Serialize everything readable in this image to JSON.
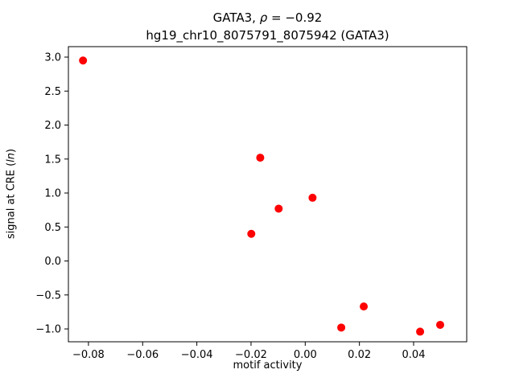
{
  "chart_data": {
    "type": "scatter",
    "title": {
      "line1_prefix": "GATA3, ",
      "line1_rho": "ρ",
      "line1_eq": " = −0.92",
      "line2": "hg19_chr10_8075791_8075942 (GATA3)"
    },
    "xlabel": "motif activity",
    "ylabel": {
      "prefix": "signal at CRE (",
      "italic": "ln",
      "suffix": ")"
    },
    "marker_color": "#ff0000",
    "xlim": [
      -0.0874,
      0.0596
    ],
    "ylim": [
      -1.189,
      3.154
    ],
    "xticks": [
      -0.08,
      -0.06,
      -0.04,
      -0.02,
      0.0,
      0.02,
      0.04
    ],
    "yticks": [
      -1.0,
      -0.5,
      0.0,
      0.5,
      1.0,
      1.5,
      2.0,
      2.5,
      3.0
    ],
    "points": [
      [
        -0.082,
        2.95
      ],
      [
        -0.0166,
        1.52
      ],
      [
        -0.0199,
        0.4
      ],
      [
        -0.0098,
        0.77
      ],
      [
        0.0027,
        0.93
      ],
      [
        0.0133,
        -0.98
      ],
      [
        0.0216,
        -0.67
      ],
      [
        0.0424,
        -1.04
      ],
      [
        0.0498,
        -0.94
      ]
    ]
  }
}
